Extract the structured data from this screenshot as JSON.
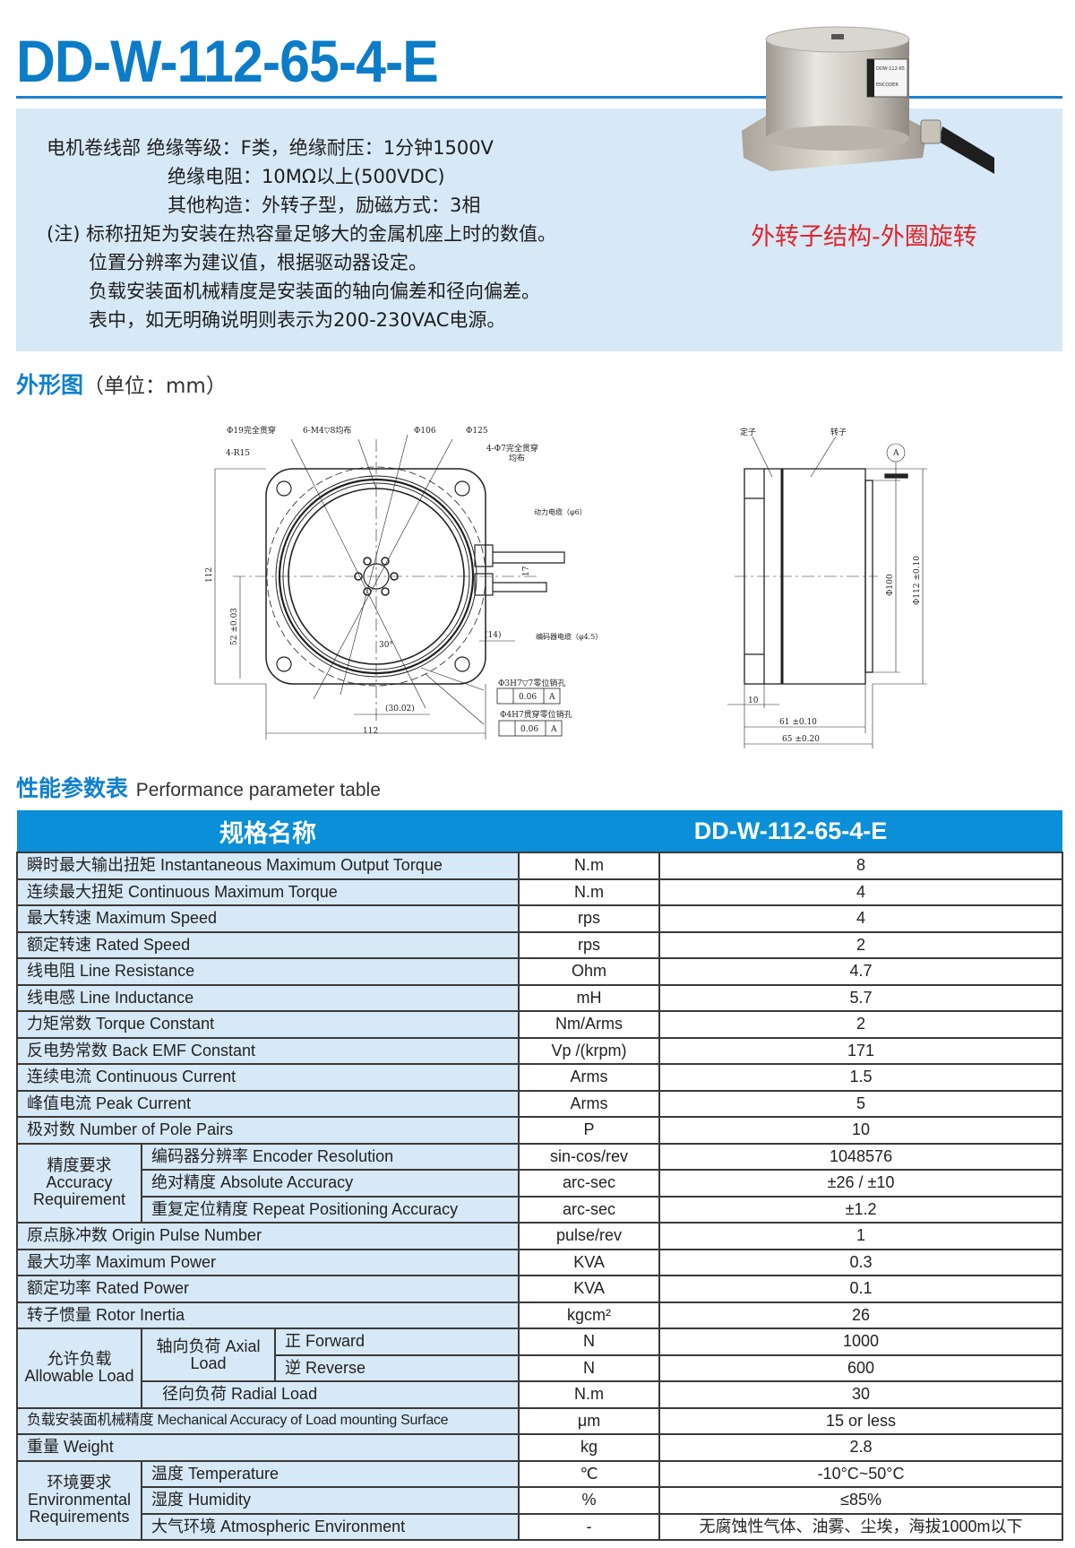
{
  "header": {
    "title": "DD-W-112-65-4-E",
    "caption": "外转子结构-外圈旋转"
  },
  "info": {
    "lines": [
      "电机卷线部   绝缘等级：F类，绝缘耐压：1分钟1500V",
      "绝缘电阻：10MΩ以上(500VDC)",
      "其他构造：外转子型，励磁方式：3相",
      "(注) 标称扭矩为安装在热容量足够大的金属机座上时的数值。",
      "位置分辨率为建议值，根据驱动器设定。",
      "负载安装面机械精度是安装面的轴向偏差和径向偏差。",
      "表中，如无明确说明则表示为200-230VAC电源。"
    ]
  },
  "motor_label": [
    "DDW-112-65",
    "ENCODER"
  ],
  "outline": {
    "title": "外形图",
    "unit": "（单位：mm）",
    "front_labels": {
      "through_hole": "Φ19完全贯穿",
      "tapped": "6-M4▽8均布",
      "d106": "Φ106",
      "d125": "Φ125",
      "r15": "4-R15",
      "mount_holes_1": "4-Φ7完全贯穿",
      "mount_holes_2": "均布",
      "power_cable": "动力电缆（φ6）",
      "encoder_cable": "编码器电缆（φ4.5）",
      "dim_17": "17",
      "dim_14": "(14)",
      "angle": "30°",
      "dim_3002": "(30.02)",
      "dim_112h": "112",
      "dim_112v": "112",
      "dim_52": "52 ±0.03",
      "pin1": "Φ3H7▽7零位销孔",
      "pin2": "Φ4H7贯穿零位销孔",
      "tol": "0.06",
      "datum": "A"
    },
    "side_labels": {
      "stator": "定子",
      "rotor": "转子",
      "datum": "A",
      "d100": "Φ100",
      "d112": "Φ112 ±0.10",
      "dim_10": "10",
      "dim_61": "61 ±0.10",
      "dim_65": "65 ±0.20"
    }
  },
  "performance": {
    "title": "性能参数表",
    "subtitle": "Performance parameter table",
    "head_spec": "规格名称",
    "head_model": "DD-W-112-65-4-E",
    "rows": [
      {
        "label": "瞬时最大输出扭矩  Instantaneous Maximum Output Torque",
        "unit": "N.m",
        "value": "8"
      },
      {
        "label": "连续最大扭矩 Continuous Maximum Torque",
        "unit": "N.m",
        "value": "4"
      },
      {
        "label": "最大转速 Maximum Speed",
        "unit": "rps",
        "value": "4"
      },
      {
        "label": "额定转速 Rated Speed",
        "unit": "rps",
        "value": "2"
      },
      {
        "label": "线电阻 Line Resistance",
        "unit": "Ohm",
        "value": "4.7"
      },
      {
        "label": "线电感 Line Inductance",
        "unit": "mH",
        "value": "5.7"
      },
      {
        "label": "力矩常数 Torque Constant",
        "unit": "Nm/Arms",
        "value": "2"
      },
      {
        "label": "反电势常数 Back EMF Constant",
        "unit": "Vp /(krpm)",
        "value": "171"
      },
      {
        "label": "连续电流 Continuous Current",
        "unit": "Arms",
        "value": "1.5"
      },
      {
        "label": "峰值电流 Peak Current",
        "unit": "Arms",
        "value": "5"
      },
      {
        "label": "极对数 Number of Pole Pairs",
        "unit": "P",
        "value": "10"
      },
      {
        "group": "精度要求 Accuracy Requirement",
        "items": [
          {
            "label": "编码器分辨率 Encoder Resolution",
            "unit": "sin-cos/rev",
            "value": "1048576"
          },
          {
            "label": "绝对精度 Absolute Accuracy",
            "unit": "arc-sec",
            "value": "±26 / ±10"
          },
          {
            "label": "重复定位精度 Repeat Positioning Accuracy",
            "unit": "arc-sec",
            "value": "±1.2"
          }
        ]
      },
      {
        "label": "原点脉冲数 Origin Pulse Number",
        "unit": "pulse/rev",
        "value": "1"
      },
      {
        "label": "最大功率 Maximum Power",
        "unit": "KVA",
        "value": "0.3"
      },
      {
        "label": "额定功率 Rated Power",
        "unit": "KVA",
        "value": "0.1"
      },
      {
        "label": "转子惯量  Rotor Inertia",
        "unit": "kgcm²",
        "value": "26"
      },
      {
        "group": "允许负载 Allowable Load",
        "items": [
          {
            "sub": "轴向负荷 Axial Load",
            "items": [
              {
                "label": "正 Forward",
                "unit": "N",
                "value": "1000"
              },
              {
                "label": "逆 Reverse",
                "unit": "N",
                "value": "600"
              }
            ]
          },
          {
            "label": "径向负荷 Radial Load",
            "unit": "N.m",
            "value": "30"
          }
        ]
      },
      {
        "label": "负载安装面机械精度 Mechanical Accuracy of Load mounting Surface",
        "unit": "μm",
        "value": "15 or less",
        "small": true
      },
      {
        "label": "重量 Weight",
        "unit": "kg",
        "value": "2.8"
      },
      {
        "group": "环境要求 Environmental Requirements",
        "items": [
          {
            "label": "温度 Temperature",
            "unit": "℃",
            "value": "-10°C~50°C"
          },
          {
            "label": "湿度 Humidity",
            "unit": "%",
            "value": "≤85%"
          },
          {
            "label": "大气环境 Atmospheric Environment",
            "unit": "-",
            "value": "无腐蚀性气体、油雾、尘埃，海拔1000m以下"
          }
        ]
      }
    ]
  },
  "colors": {
    "brand_blue": "#0b7cc8",
    "header_blue": "#0a8fd8",
    "panel": "#d7e8f6",
    "accent_red": "#e0242b"
  }
}
